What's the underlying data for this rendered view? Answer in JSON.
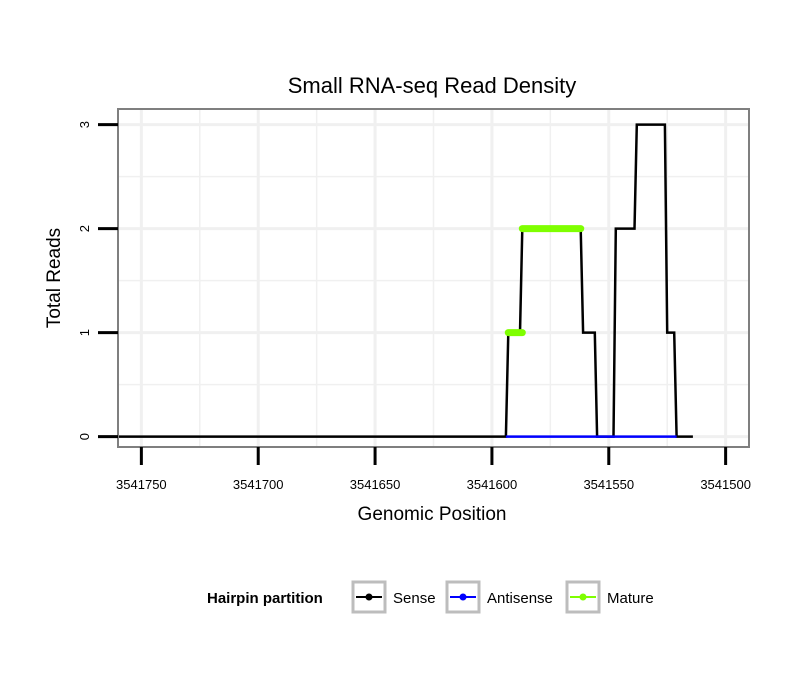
{
  "chart_data": {
    "type": "line",
    "title": "Small RNA-seq Read Density",
    "xlabel": "Genomic Position",
    "ylabel": "Total Reads",
    "xlim": [
      3541760,
      3541490
    ],
    "ylim": [
      -0.1,
      3.15
    ],
    "x_ticks": [
      3541750,
      3541700,
      3541650,
      3541600,
      3541550,
      3541500
    ],
    "x_tick_labels": [
      "3541750",
      "3541700",
      "3541650",
      "3541600",
      "3541550",
      "3541500"
    ],
    "y_ticks": [
      0,
      1,
      2,
      3
    ],
    "y_tick_labels": [
      "0",
      "1",
      "2",
      "3"
    ],
    "legend": {
      "title": "Hairpin partition",
      "position": "bottom",
      "entries": [
        "Sense",
        "Antisense",
        "Mature"
      ]
    },
    "series": [
      {
        "name": "Sense",
        "color": "#000000",
        "points": [
          [
            3541760,
            0
          ],
          [
            3541594,
            0
          ],
          [
            3541593,
            1
          ],
          [
            3541588,
            1
          ],
          [
            3541587,
            2
          ],
          [
            3541562,
            2
          ],
          [
            3541561,
            1
          ],
          [
            3541556,
            1
          ],
          [
            3541555,
            0
          ],
          [
            3541548,
            0
          ],
          [
            3541547,
            2
          ],
          [
            3541539,
            2
          ],
          [
            3541538,
            3
          ],
          [
            3541526,
            3
          ],
          [
            3541525,
            1
          ],
          [
            3541522,
            1
          ],
          [
            3541521,
            0
          ],
          [
            3541514,
            0
          ]
        ]
      },
      {
        "name": "Antisense",
        "color": "#0000ff",
        "points": [
          [
            3541594,
            0
          ],
          [
            3541521,
            0
          ]
        ]
      },
      {
        "name": "Mature",
        "color": "#7fff00",
        "segments": [
          {
            "x0": 3541593,
            "x1": 3541587,
            "y": 1
          },
          {
            "x0": 3541587,
            "x1": 3541562,
            "y": 2
          }
        ]
      }
    ]
  }
}
